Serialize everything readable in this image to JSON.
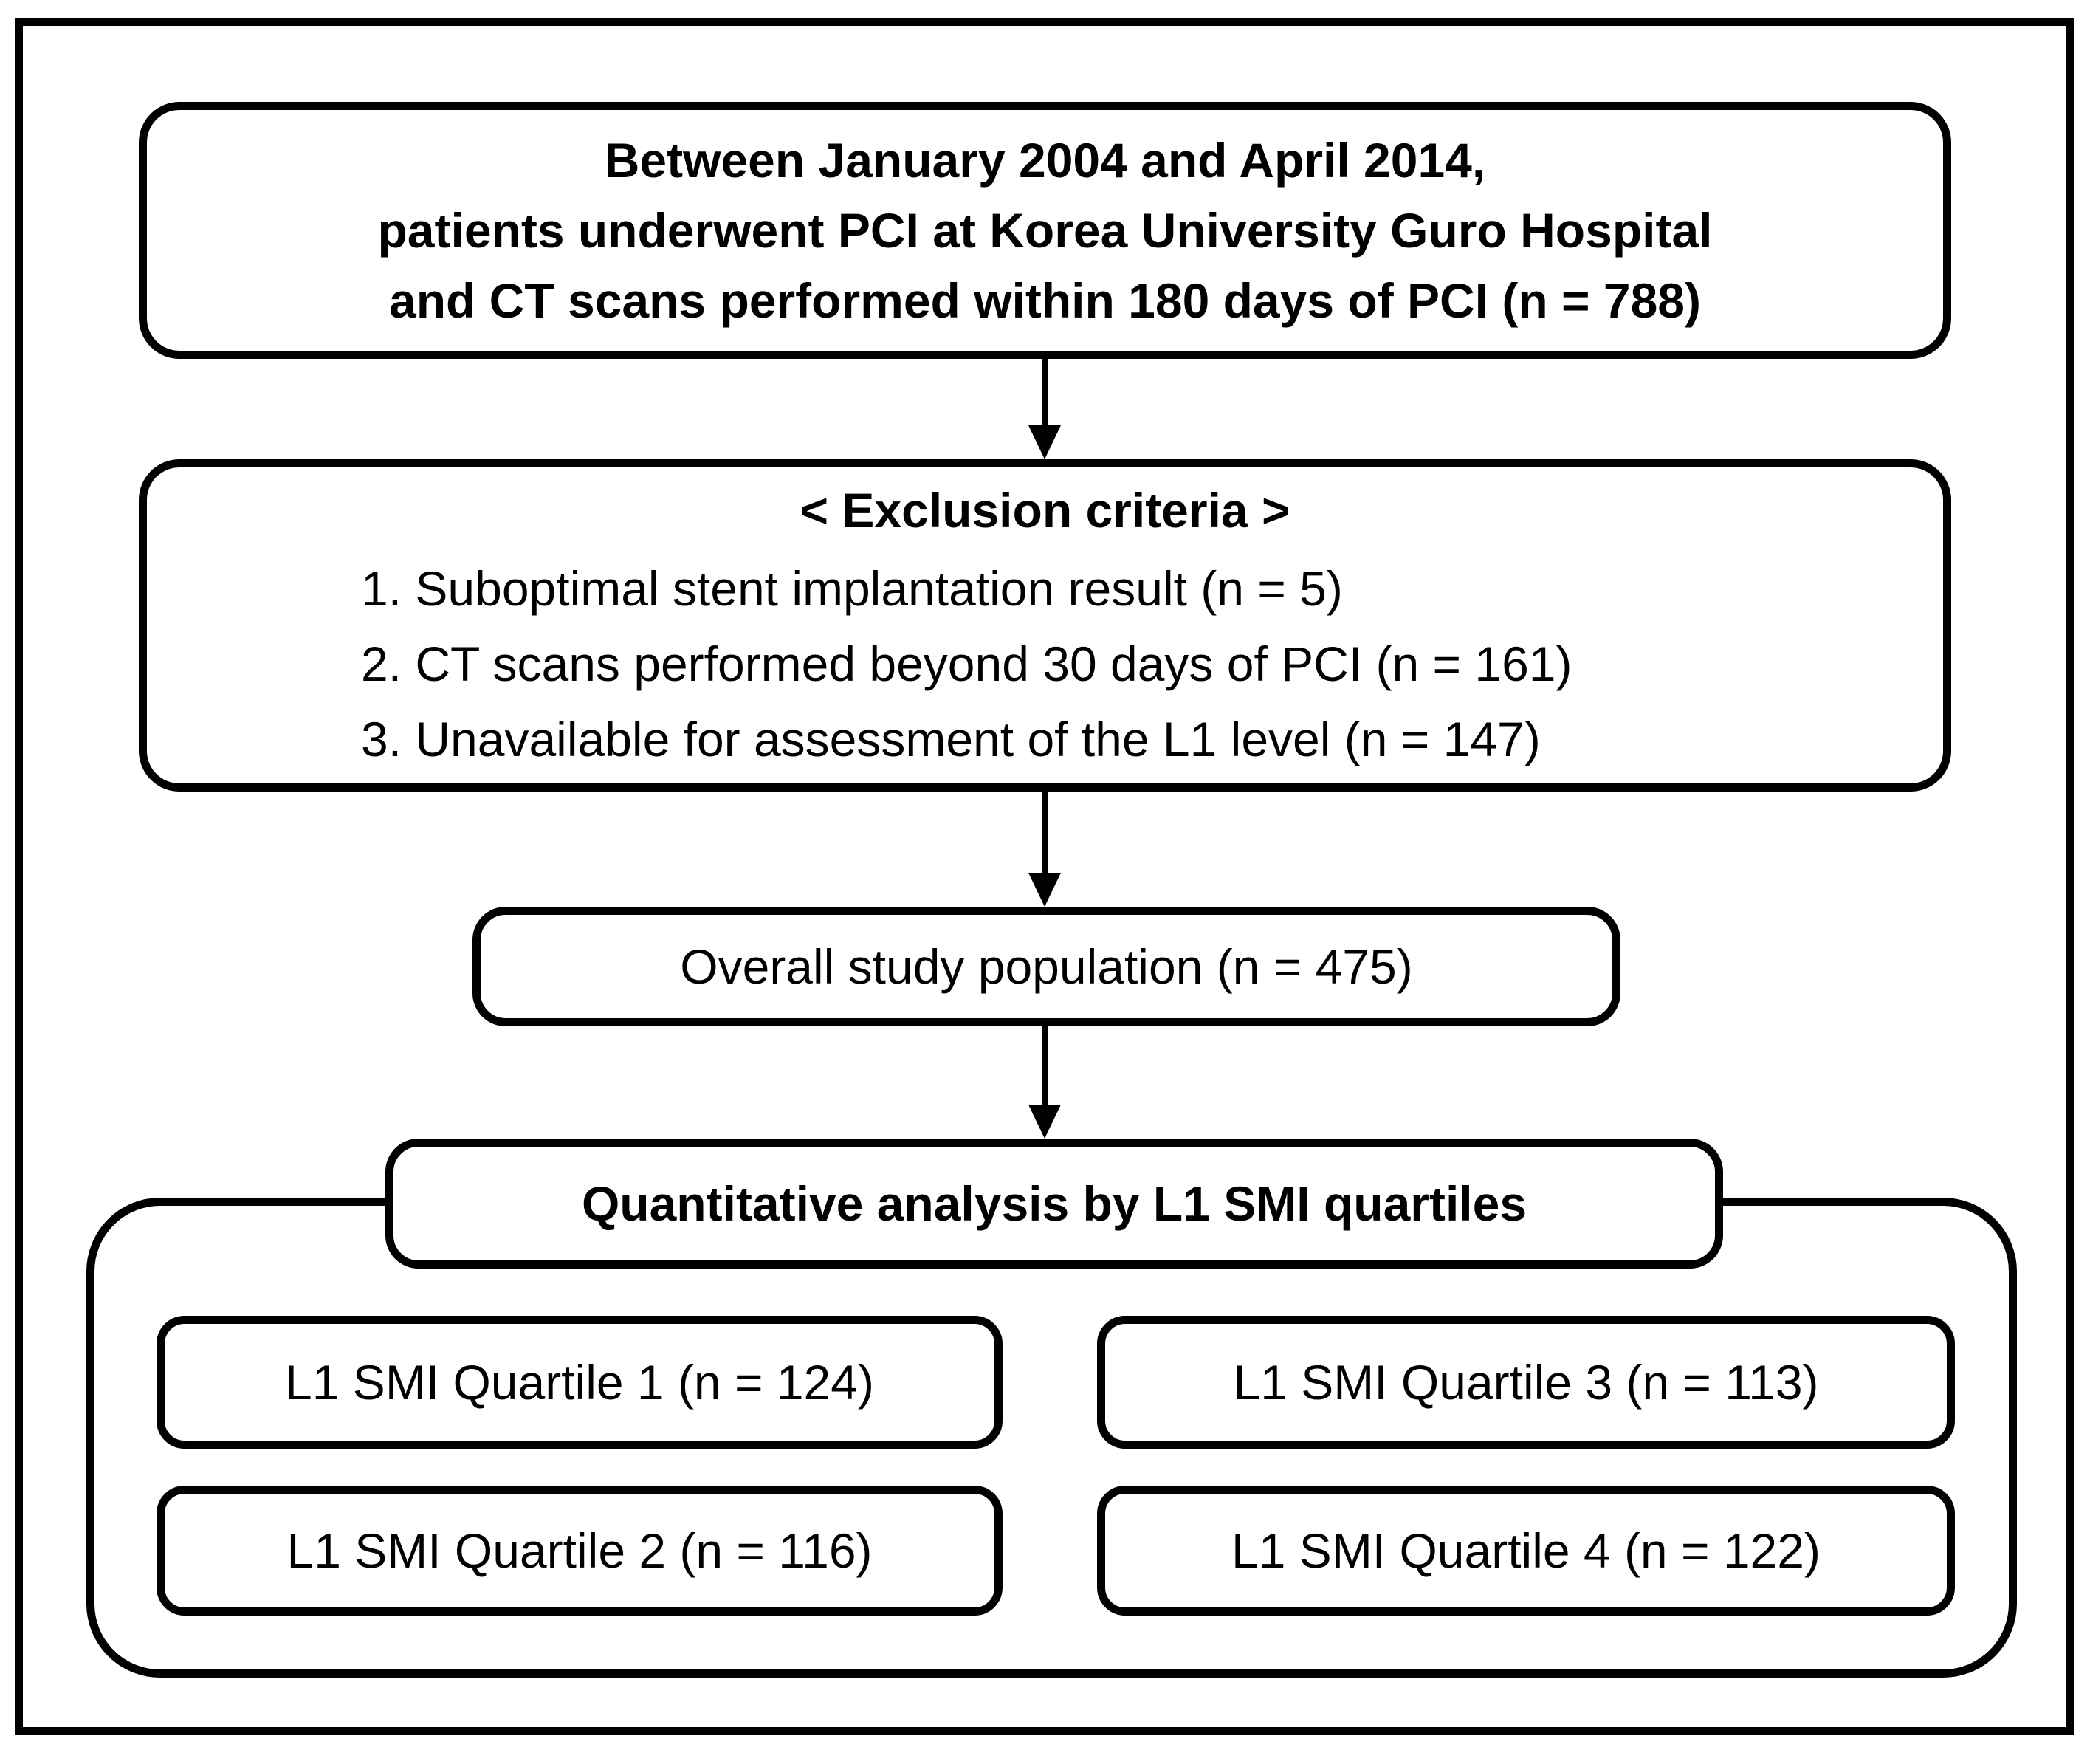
{
  "figure": {
    "colors": {
      "ink": "#000000",
      "background": "#ffffff"
    },
    "enrollment_box": {
      "lines": [
        "Between January 2004 and April 2014,",
        "patients underwent PCI at Korea University Guro Hospital",
        "and CT scans performed within 180 days of PCI (n = 788)"
      ]
    },
    "exclusion_box": {
      "title": "< Exclusion criteria >",
      "items": [
        "1. Suboptimal stent implantation result (n = 5)",
        "2. CT scans performed beyond 30 days of PCI (n = 161)",
        "3. Unavailable for assessment of the L1 level (n = 147)"
      ]
    },
    "population_box": {
      "label": "Overall study population (n = 475)"
    },
    "analysis_box": {
      "label": "Quantitative analysis by L1 SMI quartiles"
    },
    "quartile_boxes": [
      {
        "label": "L1 SMI Quartile 1 (n = 124)"
      },
      {
        "label": "L1 SMI Quartile 2 (n = 116)"
      },
      {
        "label": "L1 SMI Quartile 3 (n = 113)"
      },
      {
        "label": "L1 SMI Quartile 4 (n = 122)"
      }
    ]
  }
}
